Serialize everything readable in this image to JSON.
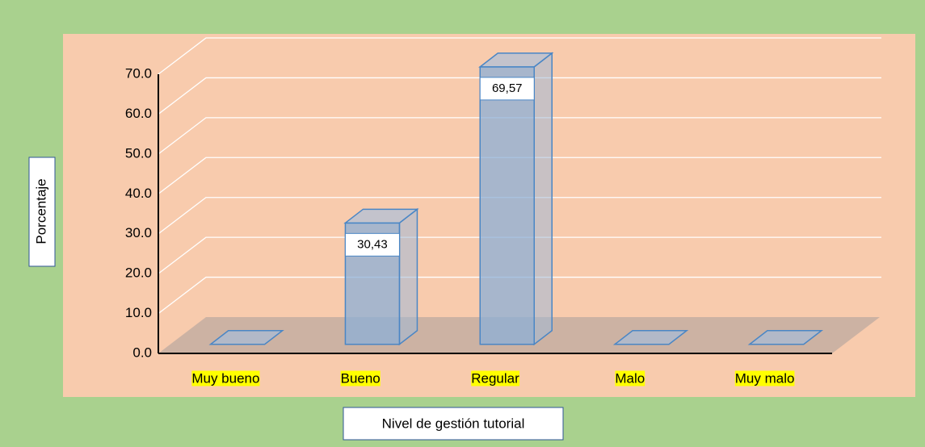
{
  "chart_data": {
    "type": "bar3d",
    "categories": [
      "Muy bueno",
      "Bueno",
      "Regular",
      "Malo",
      "Muy malo"
    ],
    "values": [
      0,
      30.43,
      69.57,
      0,
      0
    ],
    "value_labels": [
      null,
      "30,43",
      "69,57",
      null,
      null
    ],
    "color": "#9dc3e6",
    "ylim": [
      0,
      70
    ],
    "yticks": [
      {
        "value": 0,
        "label": "0.0"
      },
      {
        "value": 10,
        "label": "10.0"
      },
      {
        "value": 20,
        "label": "20.0"
      },
      {
        "value": 30,
        "label": "30.0"
      },
      {
        "value": 40,
        "label": "40.0"
      },
      {
        "value": 50,
        "label": "50.0"
      },
      {
        "value": 60,
        "label": "60.0"
      },
      {
        "value": 70,
        "label": "70.0"
      }
    ],
    "ylabel": "Porcentaje",
    "xlabel": "Nivel de gestión tutorial",
    "grid": true
  }
}
